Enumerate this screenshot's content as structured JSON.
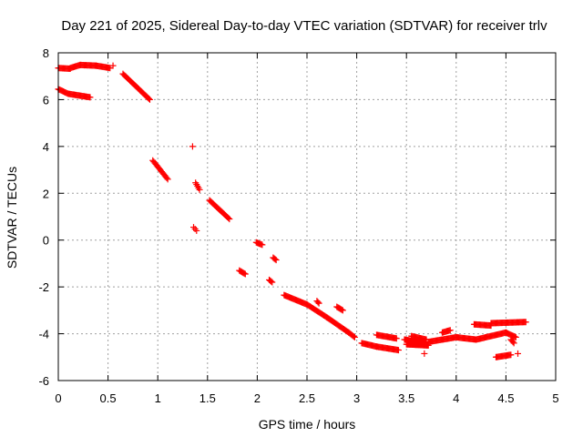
{
  "chart_data": {
    "type": "scatter",
    "title": "Day 221 of 2025, Sidereal Day-to-day VTEC variation (SDTVAR) for receiver trlv",
    "xlabel": "GPS time / hours",
    "ylabel": "SDTVAR / TECUs",
    "xlim": [
      0,
      5
    ],
    "ylim": [
      -6,
      8
    ],
    "xticks": [
      "0",
      "0.5",
      "1",
      "1.5",
      "2",
      "2.5",
      "3",
      "3.5",
      "4",
      "4.5",
      "5"
    ],
    "yticks": [
      "-6",
      "-4",
      "-2",
      "0",
      "2",
      "4",
      "6",
      "8"
    ],
    "grid": true,
    "marker": "+",
    "color": "#ff0000",
    "segments": [
      {
        "x0": 0.0,
        "x1": 0.12,
        "y0": 7.35,
        "y1": 7.32,
        "dx": 0.01
      },
      {
        "x0": 0.12,
        "x1": 0.22,
        "y0": 7.35,
        "y1": 7.48,
        "dx": 0.01
      },
      {
        "x0": 0.22,
        "x1": 0.38,
        "y0": 7.48,
        "y1": 7.45,
        "dx": 0.01
      },
      {
        "x0": 0.38,
        "x1": 0.52,
        "y0": 7.45,
        "y1": 7.35,
        "dx": 0.01
      },
      {
        "x0": 0.0,
        "x1": 0.1,
        "y0": 6.45,
        "y1": 6.25,
        "dx": 0.01
      },
      {
        "x0": 0.1,
        "x1": 0.32,
        "y0": 6.25,
        "y1": 6.1,
        "dx": 0.01
      },
      {
        "x0": 0.65,
        "x1": 0.92,
        "y0": 7.1,
        "y1": 6.0,
        "dx": 0.01
      },
      {
        "x0": 0.95,
        "x1": 1.1,
        "y0": 3.4,
        "y1": 2.6,
        "dx": 0.01
      },
      {
        "x0": 1.38,
        "x1": 1.42,
        "y0": 2.45,
        "y1": 2.15,
        "dx": 0.01
      },
      {
        "x0": 1.36,
        "x1": 1.39,
        "y0": 0.55,
        "y1": 0.4,
        "dx": 0.015
      },
      {
        "x0": 1.52,
        "x1": 1.72,
        "y0": 1.7,
        "y1": 0.9,
        "dx": 0.01
      },
      {
        "x0": 1.82,
        "x1": 1.88,
        "y0": -1.3,
        "y1": -1.45,
        "dx": 0.01
      },
      {
        "x0": 1.99,
        "x1": 2.05,
        "y0": -0.1,
        "y1": -0.2,
        "dx": 0.01
      },
      {
        "x0": 2.12,
        "x1": 2.15,
        "y0": -1.7,
        "y1": -1.8,
        "dx": 0.01
      },
      {
        "x0": 2.16,
        "x1": 2.19,
        "y0": -0.75,
        "y1": -0.85,
        "dx": 0.01
      },
      {
        "x0": 2.27,
        "x1": 2.5,
        "y0": -2.35,
        "y1": -2.75,
        "dx": 0.01
      },
      {
        "x0": 2.5,
        "x1": 2.7,
        "y0": -2.75,
        "y1": -3.3,
        "dx": 0.01
      },
      {
        "x0": 2.7,
        "x1": 2.92,
        "y0": -3.3,
        "y1": -3.95,
        "dx": 0.01
      },
      {
        "x0": 2.92,
        "x1": 2.98,
        "y0": -3.95,
        "y1": -4.15,
        "dx": 0.01
      },
      {
        "x0": 2.6,
        "x1": 2.62,
        "y0": -2.6,
        "y1": -2.7,
        "dx": 0.01
      },
      {
        "x0": 2.8,
        "x1": 2.86,
        "y0": -2.85,
        "y1": -3.0,
        "dx": 0.01
      },
      {
        "x0": 3.05,
        "x1": 3.2,
        "y0": -4.4,
        "y1": -4.55,
        "dx": 0.01
      },
      {
        "x0": 3.2,
        "x1": 3.42,
        "y0": -4.55,
        "y1": -4.7,
        "dx": 0.01
      },
      {
        "x0": 3.2,
        "x1": 3.4,
        "y0": -4.05,
        "y1": -4.2,
        "dx": 0.01
      },
      {
        "x0": 3.48,
        "x1": 3.68,
        "y0": -4.25,
        "y1": -4.4,
        "dx": 0.008
      },
      {
        "x0": 3.5,
        "x1": 3.72,
        "y0": -4.45,
        "y1": -4.5,
        "dx": 0.008
      },
      {
        "x0": 3.55,
        "x1": 3.7,
        "y0": -4.1,
        "y1": -4.25,
        "dx": 0.01
      },
      {
        "x0": 3.72,
        "x1": 4.0,
        "y0": -4.35,
        "y1": -4.15,
        "dx": 0.01
      },
      {
        "x0": 3.86,
        "x1": 3.94,
        "y0": -3.95,
        "y1": -3.85,
        "dx": 0.01
      },
      {
        "x0": 4.0,
        "x1": 4.2,
        "y0": -4.15,
        "y1": -4.25,
        "dx": 0.01
      },
      {
        "x0": 4.2,
        "x1": 4.5,
        "y0": -4.25,
        "y1": -3.95,
        "dx": 0.01
      },
      {
        "x0": 4.5,
        "x1": 4.6,
        "y0": -3.95,
        "y1": -4.15,
        "dx": 0.01
      },
      {
        "x0": 4.55,
        "x1": 4.58,
        "y0": -4.25,
        "y1": -4.4,
        "dx": 0.01
      },
      {
        "x0": 4.18,
        "x1": 4.35,
        "y0": -3.6,
        "y1": -3.65,
        "dx": 0.01
      },
      {
        "x0": 4.35,
        "x1": 4.7,
        "y0": -3.55,
        "y1": -3.5,
        "dx": 0.01
      },
      {
        "x0": 4.4,
        "x1": 4.55,
        "y0": -5.0,
        "y1": -4.9,
        "dx": 0.01
      }
    ],
    "scatter_points": [
      {
        "x": 1.35,
        "y": 4.0
      },
      {
        "x": 3.68,
        "y": -4.85
      },
      {
        "x": 4.62,
        "y": -4.85
      },
      {
        "x": 0.55,
        "y": 7.45
      }
    ]
  }
}
